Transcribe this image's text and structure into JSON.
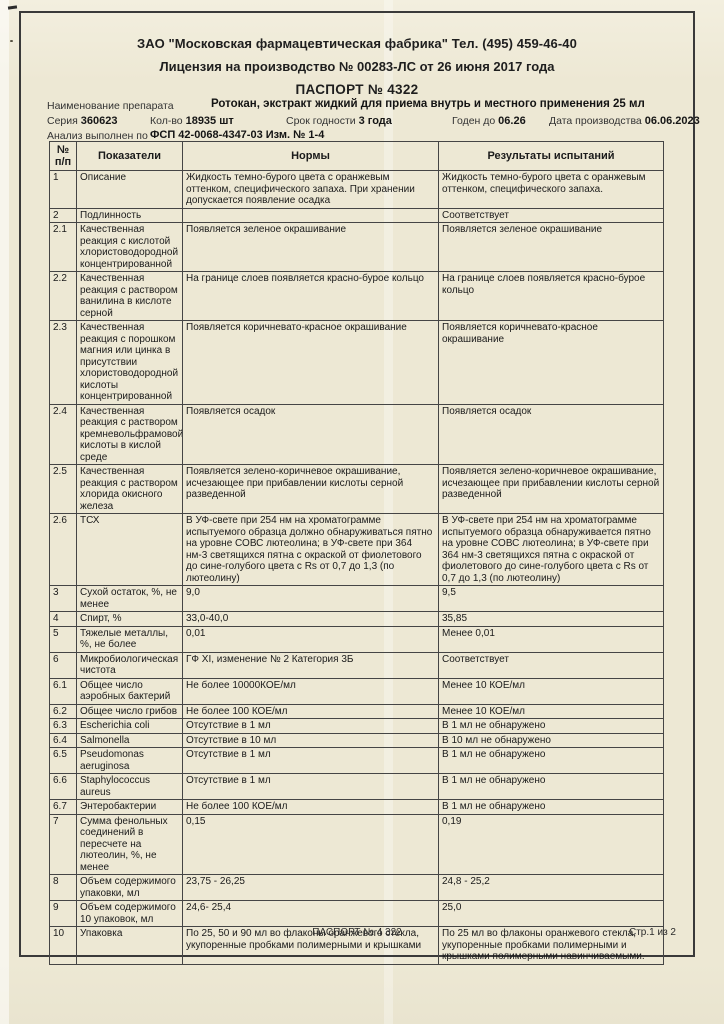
{
  "colors": {
    "paper": "#ede8d4",
    "ink": "#1e1e1e",
    "table_line": "#454545"
  },
  "page": {
    "company_line": "ЗАО \"Московская фармацевтическая фабрика\" Тел. (495) 459-46-40",
    "license_line": "Лицензия на производство № 00283-ЛС от 26 июня 2017 года",
    "passport_title": "ПАСПОРТ № 4322",
    "drug_label": "Наименование препарата",
    "drug_name": "Ротокан, экстракт жидкий  для приема внутрь и местного применения 25 мл",
    "fields": [
      {
        "label": "Серия",
        "value": "360623"
      },
      {
        "label": "Кол-во",
        "value": "18935 шт"
      },
      {
        "label": "Срок годности",
        "value": "3 года"
      },
      {
        "label": "Годен до",
        "value": "06.26"
      },
      {
        "label": "Дата производства",
        "value": "06.06.2023"
      }
    ],
    "analysis_label": "Анализ выполнен по",
    "analysis_value": "ФСП 42-0068-4347-03 Изм. № 1-4",
    "footer_center": "ПАСПОРТ № 4 322",
    "footer_right": "Стр.1 из 2"
  },
  "table": {
    "headers": [
      "№ п/п",
      "Показатели",
      "Нормы",
      "Результаты испытаний"
    ],
    "rows": [
      {
        "num": "1",
        "indicator": "Описание",
        "norm": "Жидкость темно-бурого цвета с оранжевым оттенком, специфического запаха. При хранении допускается появление осадка",
        "result": "Жидкость темно-бурого цвета с оранжевым оттенком, специфического запаха."
      },
      {
        "num": "2",
        "indicator": "Подлинность",
        "norm": "",
        "result": "Соответствует"
      },
      {
        "num": "2.1",
        "indicator": "Качественная реакция с кислотой хлористоводородной концентрированной",
        "norm": "Появляется зеленое окрашивание",
        "result": "Появляется зеленое окрашивание"
      },
      {
        "num": "2.2",
        "indicator": "Качественная реакция с раствором ванилина в кислоте серной",
        "norm": "На границе слоев  появляется красно-бурое кольцо",
        "result": "На границе слоев  появляется красно-бурое кольцо"
      },
      {
        "num": "2.3",
        "indicator": "Качественная реакция с порошком магния или цинка в присутствии хлористоводородной кислоты концентрированной",
        "norm": "Появляется коричневато-красное окрашивание",
        "result": "Появляется коричневато-красное окрашивание"
      },
      {
        "num": "2.4",
        "indicator": "Качественная реакция с раствором кремневольфрамовой кислоты в кислой среде",
        "norm": "Появляется осадок",
        "result": "Появляется осадок"
      },
      {
        "num": "2.5",
        "indicator": "Качественная реакция с раствором хлорида окисного железа",
        "norm": "Появляется зелено-коричневое окрашивание, исчезающее при прибавлении кислоты серной разведенной",
        "result": "Появляется зелено-коричневое окрашивание, исчезающее при прибавлении кислоты серной разведенной"
      },
      {
        "num": "2.6",
        "indicator": "ТСХ",
        "norm": "В УФ-свете при 254 нм на хроматограмме испытуемого образца должно обнаруживаться пятно на уровне СОВС лютеолина; в УФ-свете при 364 нм-3 светящихся пятна с окраской от фиолетового до сине-голубого цвета с Rs от 0,7 до 1,3 (по лютеолину)",
        "result": "В УФ-свете при 254 нм на хроматограмме испытуемого образца обнаруживается пятно на уровне СОВС лютеолина; в УФ-свете при 364 нм-3 светящихся пятна с окраской от фиолетового до сине-голубого цвета с Rs от 0,7 до 1,3 (по лютеолину)"
      },
      {
        "num": "3",
        "indicator": "Сухой остаток, %, не менее",
        "norm": "9,0",
        "result": "9,5"
      },
      {
        "num": "4",
        "indicator": "Спирт, %",
        "norm": "33,0-40,0",
        "result": "35,85"
      },
      {
        "num": "5",
        "indicator": "Тяжелые металлы, %, не более",
        "norm": "0,01",
        "result": "Менее 0,01"
      },
      {
        "num": "6",
        "indicator": "Микробиологическая чистота",
        "norm": "ГФ XI, изменение № 2  Категория 3Б",
        "result": "Соответствует"
      },
      {
        "num": "6.1",
        "indicator": "Общее число аэробных бактерий",
        "norm": "Не более 10000КОЕ/мл",
        "result": "Менее 10 КОЕ/мл"
      },
      {
        "num": "6.2",
        "indicator": "Общее число грибов",
        "norm": "Не более 100 КОЕ/мл",
        "result": "Менее 10 КОЕ/мл"
      },
      {
        "num": "6.3",
        "indicator": "Escherichia coli",
        "norm": "Отсутствие в 1 мл",
        "result": "В 1 мл не обнаружено"
      },
      {
        "num": "6.4",
        "indicator": "Salmonella",
        "norm": "Отсутствие в 10 мл",
        "result": "В 10 мл не обнаружено"
      },
      {
        "num": "6.5",
        "indicator": "Pseudomonas aeruginosa",
        "norm": "Отсутствие в 1 мл",
        "result": "В 1 мл не обнаружено"
      },
      {
        "num": "6.6",
        "indicator": "Staphylococcus aureus",
        "norm": "Отсутствие в 1 мл",
        "result": "В 1 мл не обнаружено"
      },
      {
        "num": "6.7",
        "indicator": "Энтеробактерии",
        "norm": "Не более 100 КОЕ/мл",
        "result": "В 1 мл не обнаружено"
      },
      {
        "num": "7",
        "indicator": "Сумма фенольных соединений в пересчете на лютеолин, %, не менее",
        "norm": "0,15",
        "result": "0,19"
      },
      {
        "num": "8",
        "indicator": "Объем содержимого упаковки, мл",
        "norm": "23,75 - 26,25",
        "result": "24,8 - 25,2"
      },
      {
        "num": "9",
        "indicator": "Объем содержимого 10 упаковок, мл",
        "norm": "24,6- 25,4",
        "result": "25,0"
      },
      {
        "num": "10",
        "indicator": "Упаковка",
        "norm": "По 25, 50 и 90 мл во флаконы оранжевого стекла, укупоренные пробками полимерными и крышками",
        "result": "По 25 мл во флаконы оранжевого стекла, укупоренные пробками полимерными и крышками полимерными навинчиваемыми."
      }
    ]
  }
}
